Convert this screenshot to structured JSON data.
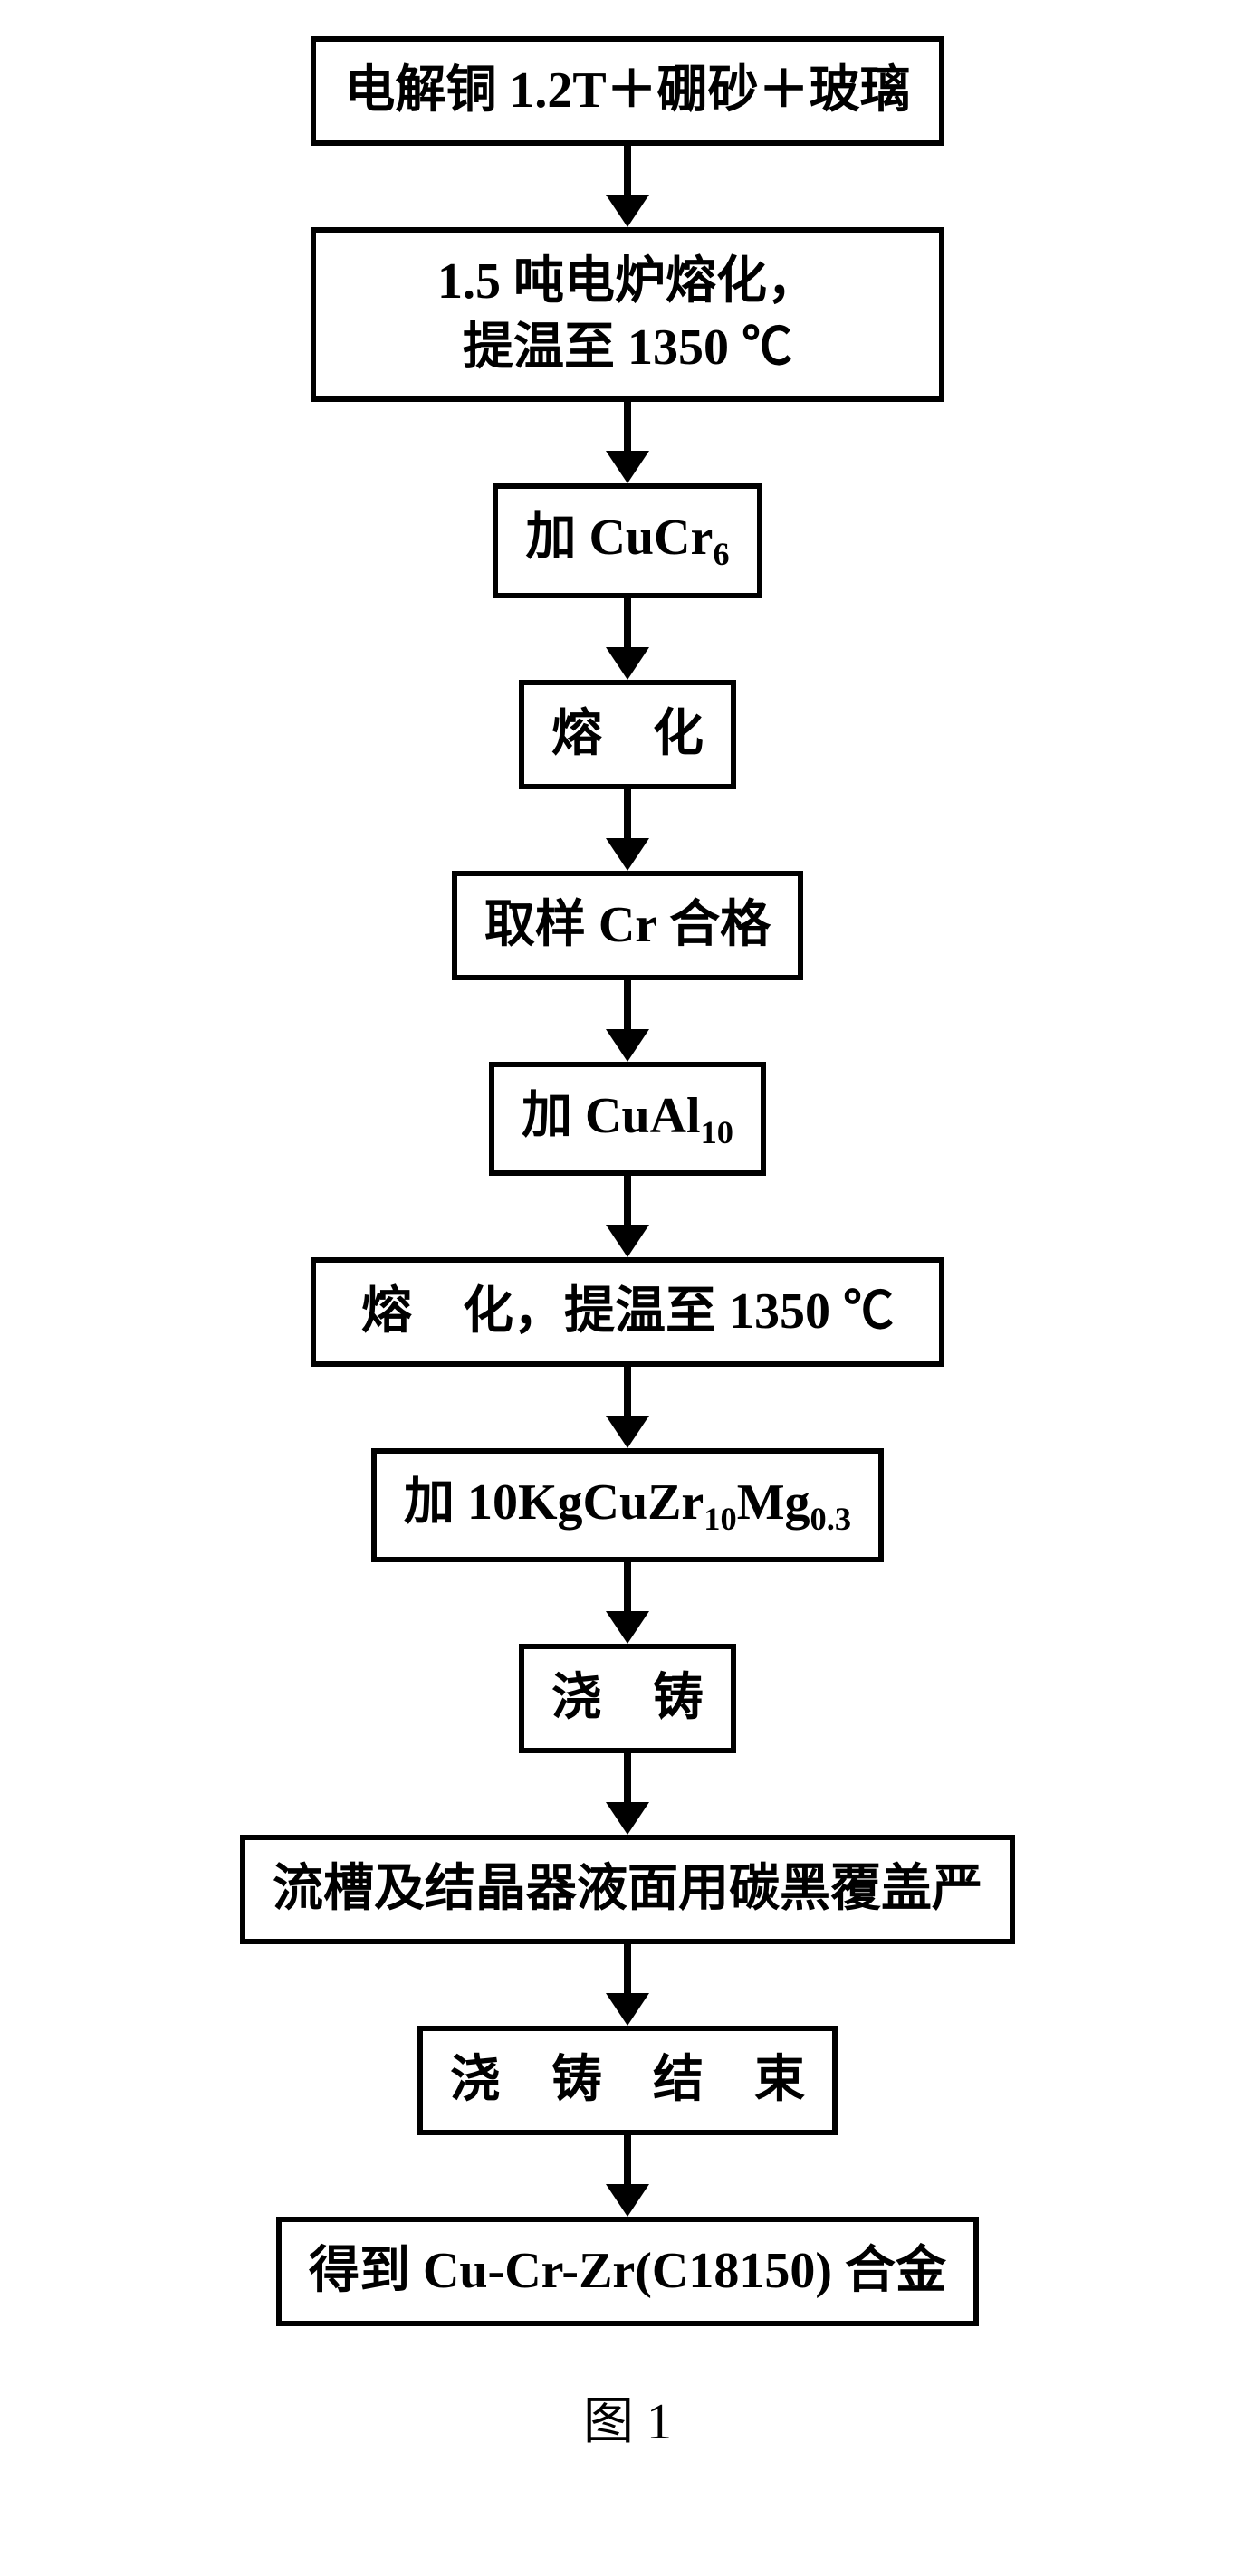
{
  "flowchart": {
    "steps": [
      {
        "text": "电解铜 1.2T＋硼砂＋玻璃",
        "wide": true
      },
      {
        "text": "1.5 吨电炉熔化，\n提温至 1350 ℃",
        "wide": true
      },
      {
        "html": "加 CuCr<sub>6</sub>",
        "wide": false
      },
      {
        "text": "熔　化",
        "wide": false
      },
      {
        "text": "取样 Cr 合格",
        "wide": false
      },
      {
        "html": "加 CuAl<sub>10</sub>",
        "wide": false
      },
      {
        "text": "熔　化，提温至 1350 ℃",
        "wide": true
      },
      {
        "html": "加 10KgCuZr<sub>10</sub>Mg<sub>0.3</sub>",
        "wide": false
      },
      {
        "text": "浇　铸",
        "wide": false
      },
      {
        "text": "流槽及结晶器液面用碳黑覆盖严",
        "wide": true
      },
      {
        "text": "浇　铸　结　束",
        "wide": false
      },
      {
        "text": "得到 Cu-Cr-Zr(C18150) 合金",
        "wide": true
      }
    ],
    "caption": "图 1",
    "styling": {
      "box_border_width": 6,
      "box_border_color": "#000000",
      "box_background": "#ffffff",
      "box_font_size": 56,
      "box_font_weight": "bold",
      "box_padding": "18px 30px",
      "arrow_line_width": 8,
      "arrow_line_color": "#000000",
      "arrow_head_size": 24,
      "arrow_head_height": 36,
      "arrow_container_height": 90,
      "background_color": "#ffffff",
      "caption_font_size": 56,
      "font_family": "SimSun"
    }
  }
}
